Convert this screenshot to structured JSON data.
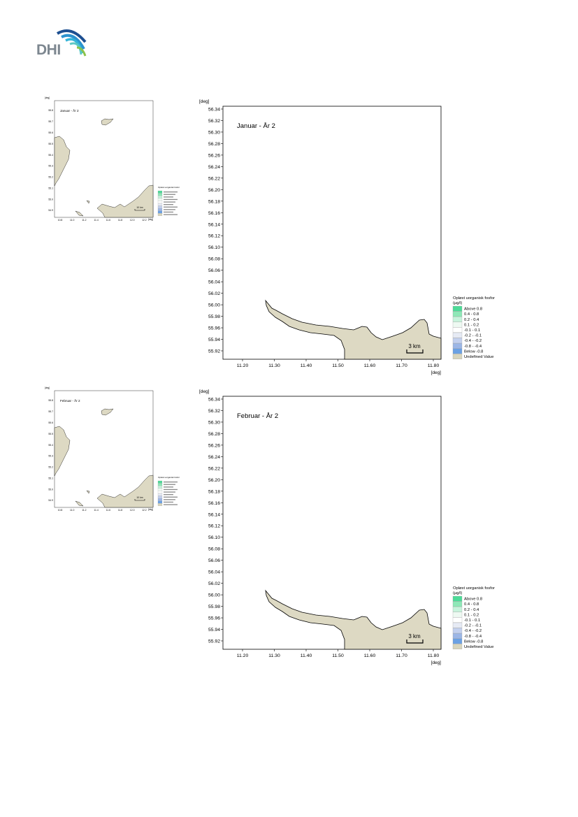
{
  "logo": {
    "text": "DHI",
    "colors": [
      "#1d4f91",
      "#2c93cf",
      "#34b4d8",
      "#5dc8c5",
      "#8bc34a"
    ]
  },
  "style": {
    "land_color": "#ddd9c3",
    "coast_color": "#000000",
    "legend_colors": [
      "#4ddb98",
      "#8ee8b7",
      "#c7f3dc",
      "#eef9f2",
      "#ffffff",
      "#e6eaf4",
      "#c3d0ee",
      "#9cb6e6",
      "#6ba1e3",
      "#d8d5bd"
    ]
  },
  "maps": [
    {
      "title": "Januar - År 2",
      "axis_unit_y": "[deg]",
      "axis_unit_x": "[deg]",
      "scale_bar": "3 km",
      "legend_title": "Opløst uorganisk fosfor\n(µg/l)",
      "legend_items": [
        "Above  0.8",
        "0.4 -  0.8",
        "0.2 -  0.4",
        "0.1 -  0.2",
        "-0.1 -  0.1",
        "-0.2 - -0.1",
        "-0.4 - -0.2",
        "-0.8 - -0.4",
        "Below -0.8",
        "Undefined Value"
      ],
      "y_ticks": [
        "56.34",
        "56.32",
        "56.30",
        "56.28",
        "56.26",
        "56.24",
        "56.22",
        "56.20",
        "56.18",
        "56.16",
        "56.14",
        "56.12",
        "56.10",
        "56.08",
        "56.06",
        "56.04",
        "56.02",
        "56.00",
        "55.98",
        "55.96",
        "55.94",
        "55.92"
      ],
      "x_ticks": [
        "11.20",
        "11.30",
        "11.40",
        "11.50",
        "11.60",
        "11.70",
        "11.80"
      ],
      "overview": {
        "title": "Januar - År 2",
        "unit": "[deg]",
        "scale_bar": "10 km",
        "y_ticks": [
          "55.8",
          "55.7",
          "55.6",
          "55.5",
          "55.4",
          "55.3",
          "55.2",
          "55.1",
          "55.0",
          "54.9"
        ],
        "x_ticks": [
          "10.8",
          "11.0",
          "11.2",
          "11.4",
          "11.6",
          "11.8",
          "12.0",
          "12.2"
        ],
        "legend_title": "Opløst uorganisk fosfor"
      }
    },
    {
      "title": "Februar - År 2",
      "axis_unit_y": "[deg]",
      "axis_unit_x": "[deg]",
      "scale_bar": "3 km",
      "legend_title": "Opløst uorganisk fosfor\n(µg/l)",
      "legend_items": [
        "Above  0.8",
        "0.4 -  0.8",
        "0.2 -  0.4",
        "0.1 -  0.2",
        "-0.1 -  0.1",
        "-0.2 - -0.1",
        "-0.4 - -0.2",
        "-0.8 - -0.4",
        "Below -0.8",
        "Undefined Value"
      ],
      "y_ticks": [
        "56.34",
        "56.32",
        "56.30",
        "56.28",
        "56.26",
        "56.24",
        "56.22",
        "56.20",
        "56.18",
        "56.16",
        "56.14",
        "56.12",
        "56.10",
        "56.08",
        "56.06",
        "56.04",
        "56.02",
        "56.00",
        "55.98",
        "55.96",
        "55.94",
        "55.92"
      ],
      "x_ticks": [
        "11.20",
        "11.30",
        "11.40",
        "11.50",
        "11.60",
        "11.70",
        "11.80"
      ],
      "overview": {
        "title": "Februar - År 2",
        "unit": "[deg]",
        "scale_bar": "10 km",
        "y_ticks": [
          "55.8",
          "55.7",
          "55.6",
          "55.5",
          "55.4",
          "55.3",
          "55.2",
          "55.1",
          "55.0",
          "54.9"
        ],
        "x_ticks": [
          "10.8",
          "11.0",
          "11.2",
          "11.4",
          "11.6",
          "11.8",
          "12.0",
          "12.2"
        ],
        "legend_title": "Opløst uorganisk fosfor"
      }
    }
  ]
}
